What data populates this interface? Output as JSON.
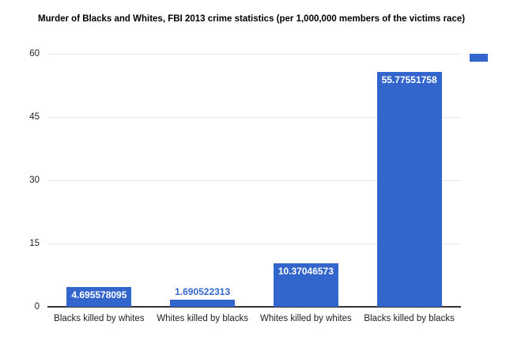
{
  "chart_data": {
    "type": "bar",
    "title": "Murder of Blacks and Whites, FBI 2013 crime statistics (per 1,000,000 members of the victims race)",
    "categories": [
      "Blacks killed by whites",
      "Whites killed by blacks",
      "Whites killed by whites",
      "Blacks killed by blacks"
    ],
    "values": [
      4.695578095,
      1.690522313,
      10.37046573,
      55.77551758
    ],
    "value_labels": [
      "4.695578095",
      "1.690522313",
      "10.37046573",
      "55.77551758"
    ],
    "yticks": [
      0,
      15,
      30,
      45,
      60
    ],
    "ylim": [
      0,
      60
    ],
    "xlabel": "",
    "ylabel": "",
    "grid": true,
    "legend_position": "right",
    "legend_text_visible": false
  },
  "colors": {
    "bar": "#3366cc",
    "annotation_inside": "#ffffff",
    "annotation_outside": "#3366cc",
    "gridline": "#e6e6e6",
    "axis_line": "#333333",
    "axis_text": "#222222",
    "title_text": "#000000",
    "background": "#ffffff"
  }
}
